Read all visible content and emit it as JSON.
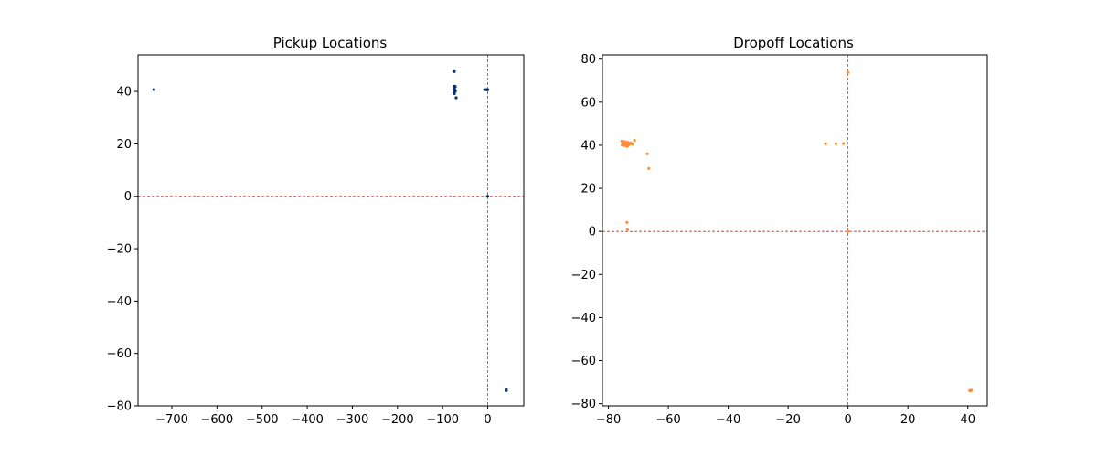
{
  "chart_data": [
    {
      "type": "scatter",
      "title": "Pickup Locations",
      "xlabel": "",
      "ylabel": "",
      "xlim": [
        -775,
        80
      ],
      "ylim": [
        -80,
        54
      ],
      "xticks": [
        -700,
        -600,
        -500,
        -400,
        -300,
        -200,
        -100,
        0
      ],
      "yticks": [
        -80,
        -60,
        -40,
        -20,
        0,
        20,
        40
      ],
      "grid": false,
      "reference_lines": {
        "x": 0,
        "y": 0,
        "color": "#d62728",
        "style": "dashed"
      },
      "marker_color": "#08306b",
      "points": [
        [
          -740,
          40.7
        ],
        [
          -74.0,
          47.6
        ],
        [
          -74.0,
          42.0
        ],
        [
          -74.0,
          41.4
        ],
        [
          -73.9,
          40.8
        ],
        [
          -74.0,
          40.7
        ],
        [
          -73.8,
          40.6
        ],
        [
          -73.9,
          40.3
        ],
        [
          -73.9,
          39.8
        ],
        [
          -73.8,
          39.2
        ],
        [
          -74.0,
          40.0
        ],
        [
          -73.7,
          41.1
        ],
        [
          -72.0,
          41.9
        ],
        [
          -75.0,
          40.9
        ],
        [
          -74.5,
          39.6
        ],
        [
          -71.6,
          40.2
        ],
        [
          -70.0,
          37.6
        ],
        [
          -7,
          40.7
        ],
        [
          -3,
          40.7
        ],
        [
          -1,
          40.7
        ],
        [
          0,
          40.7
        ],
        [
          0,
          0
        ],
        [
          40.7,
          -73.9
        ],
        [
          40.8,
          -74.0
        ],
        [
          41.0,
          -73.8
        ],
        [
          40.6,
          -74.2
        ],
        [
          41.2,
          -74.1
        ]
      ]
    },
    {
      "type": "scatter",
      "title": "Dropoff Locations",
      "xlabel": "",
      "ylabel": "",
      "xlim": [
        -82,
        46.5
      ],
      "ylim": [
        -81,
        82
      ],
      "xticks": [
        -80,
        -60,
        -40,
        -20,
        0,
        20,
        40
      ],
      "yticks": [
        -80,
        -60,
        -40,
        -20,
        0,
        20,
        40,
        60,
        80
      ],
      "grid": false,
      "reference_lines": {
        "x": 0,
        "y": 0,
        "color": "#d62728",
        "style": "dashed"
      },
      "marker_color": "#fd8d3c",
      "points": [
        [
          -75.5,
          41.9
        ],
        [
          -75.0,
          40.7
        ],
        [
          -74.3,
          40.2
        ],
        [
          -74.0,
          40.9
        ],
        [
          -73.6,
          41.4
        ],
        [
          -73.2,
          40.3
        ],
        [
          -74.8,
          39.9
        ],
        [
          -75.2,
          40.6
        ],
        [
          -74.6,
          41.7
        ],
        [
          -73.9,
          39.5
        ],
        [
          -73.4,
          41.0
        ],
        [
          -72.8,
          40.7
        ],
        [
          -74.1,
          41.2
        ],
        [
          -75.4,
          40.1
        ],
        [
          -73.7,
          40.5
        ],
        [
          -72.6,
          41.1
        ],
        [
          -72.0,
          40.5
        ],
        [
          -71.3,
          42.3
        ],
        [
          -74.9,
          41.3
        ],
        [
          -73.5,
          39.7
        ],
        [
          -67.0,
          36.0
        ],
        [
          -66.5,
          29.2
        ],
        [
          -73.8,
          4.2
        ],
        [
          -73.6,
          0.8
        ],
        [
          -7.5,
          40.7
        ],
        [
          -4.0,
          40.7
        ],
        [
          -1.5,
          40.8
        ],
        [
          0.0,
          73.8
        ],
        [
          0.0,
          0.0
        ],
        [
          40.6,
          -73.9
        ],
        [
          40.9,
          -74.0
        ],
        [
          41.2,
          -73.8
        ]
      ]
    }
  ]
}
